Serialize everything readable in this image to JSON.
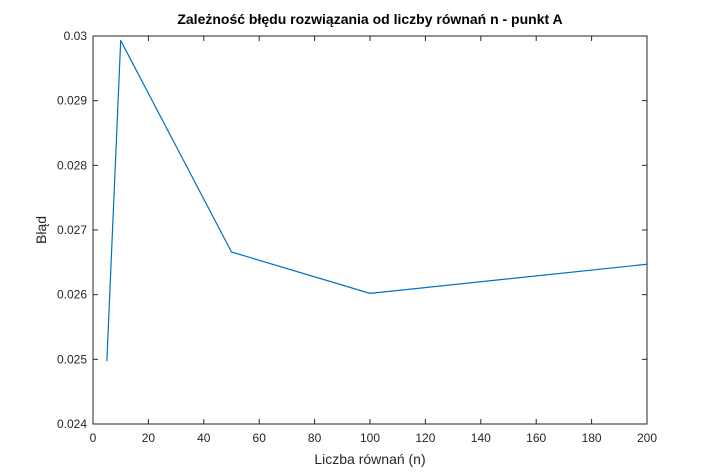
{
  "chart_data": {
    "type": "line",
    "title": "Zależność błędu rozwiązania od liczby równań n - punkt A",
    "xlabel": "Liczba równań (n)",
    "ylabel": "Błąd",
    "xlim": [
      0,
      200
    ],
    "ylim": [
      0.024,
      0.03
    ],
    "xticks": [
      0,
      20,
      40,
      60,
      80,
      100,
      120,
      140,
      160,
      180,
      200
    ],
    "xtick_labels": [
      "0",
      "20",
      "40",
      "60",
      "80",
      "100",
      "120",
      "140",
      "160",
      "180",
      "200"
    ],
    "yticks": [
      0.024,
      0.025,
      0.026,
      0.027,
      0.028,
      0.029,
      0.03
    ],
    "ytick_labels": [
      "0.024",
      "0.025",
      "0.026",
      "0.027",
      "0.028",
      "0.029",
      "0.03"
    ],
    "grid": false,
    "colors": {
      "series": "#0072bd",
      "axes": "#262626"
    },
    "series": [
      {
        "x": [
          5,
          10,
          50,
          100,
          200
        ],
        "y": [
          0.02497,
          0.02993,
          0.02666,
          0.02602,
          0.02647
        ]
      }
    ]
  }
}
